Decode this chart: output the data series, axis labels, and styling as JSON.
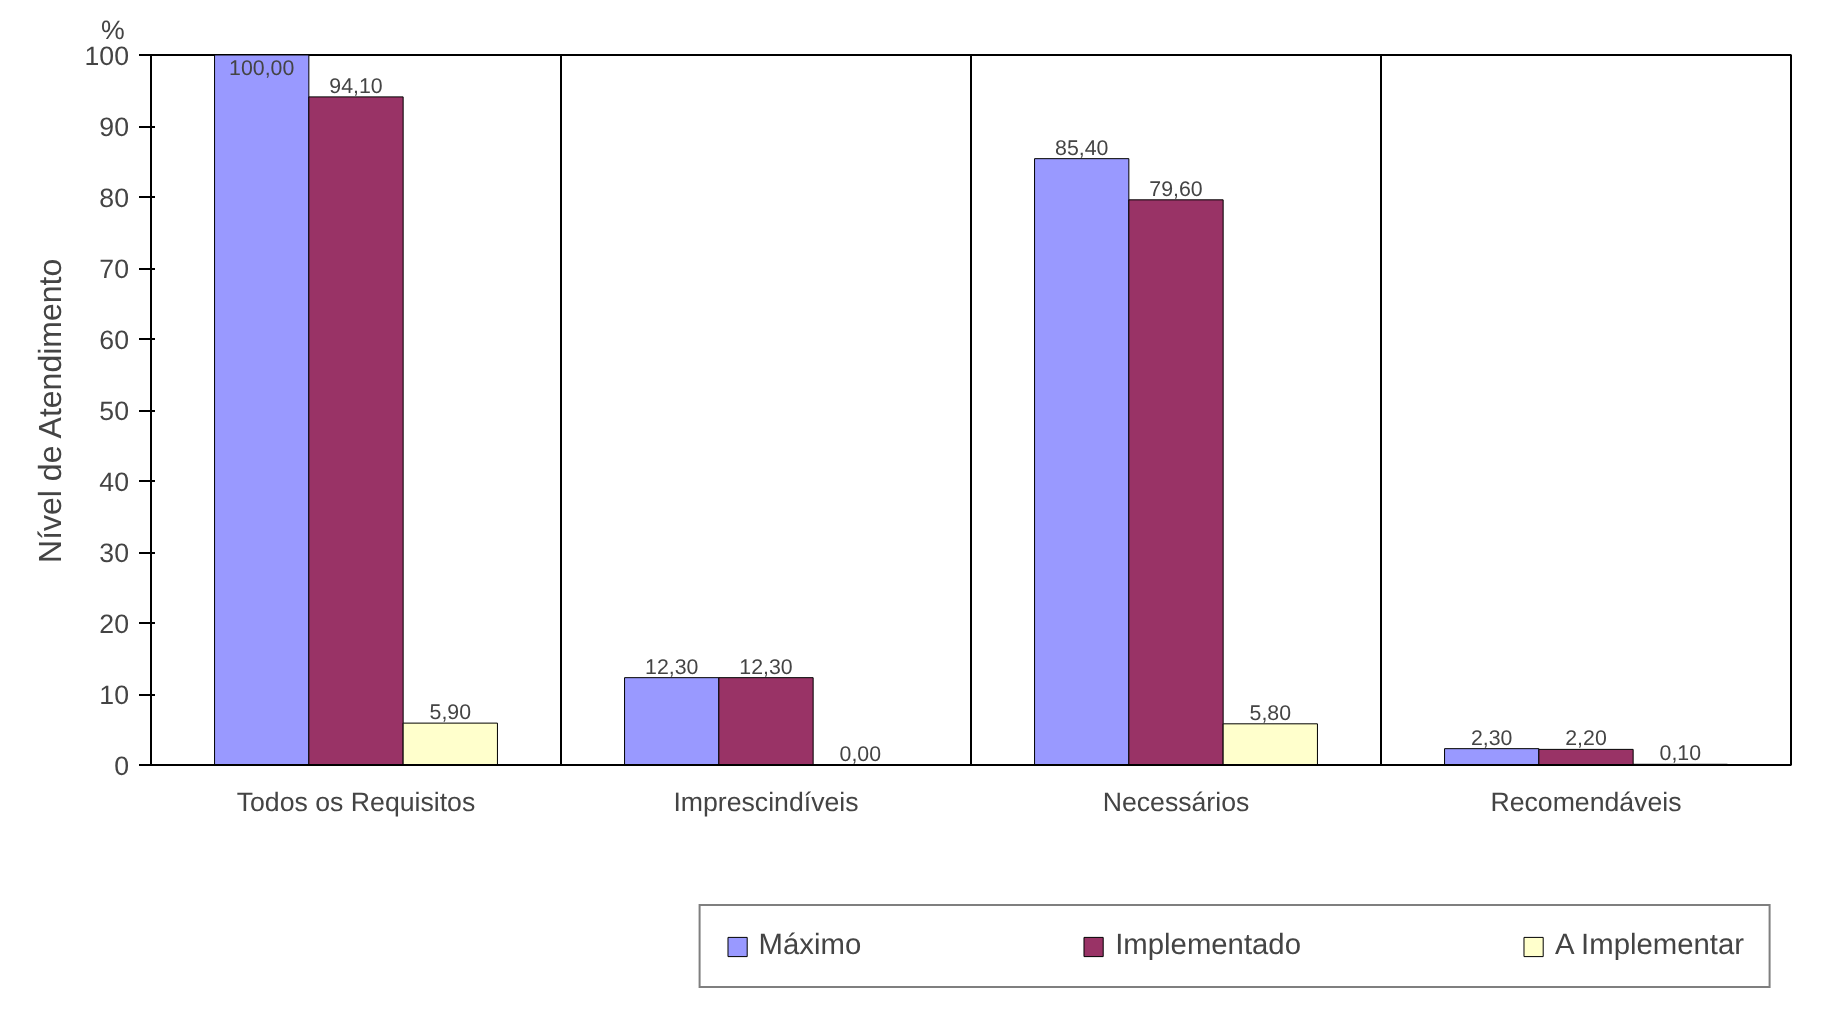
{
  "chart_data": {
    "type": "bar",
    "ylabel": "Nível de Atendimento",
    "annotations": [
      "%"
    ],
    "categories": [
      "Todos os Requisitos",
      "Imprescindíveis",
      "Necessários",
      "Recomendáveis"
    ],
    "series": [
      {
        "name": "Máximo",
        "color": "#9999ff",
        "values": [
          100,
          12.3,
          85.4,
          2.3
        ],
        "value_labels": [
          "100,00",
          "12,30",
          "85,40",
          "2,30"
        ]
      },
      {
        "name": "Implementado",
        "color": "#993366",
        "values": [
          94.1,
          12.3,
          79.6,
          2.2
        ],
        "value_labels": [
          "94,10",
          "12,30",
          "79,60",
          "2,20"
        ]
      },
      {
        "name": "A Implementar",
        "color": "#ffffcc",
        "values": [
          5.9,
          0,
          5.8,
          0.1
        ],
        "value_labels": [
          "5,90",
          "0,00",
          "5,80",
          "0,10"
        ]
      }
    ],
    "ylim": [
      0,
      100
    ],
    "yticks": [
      0,
      10,
      20,
      30,
      40,
      50,
      60,
      70,
      80,
      90,
      100
    ],
    "grid": "x",
    "legend": "bottom"
  }
}
